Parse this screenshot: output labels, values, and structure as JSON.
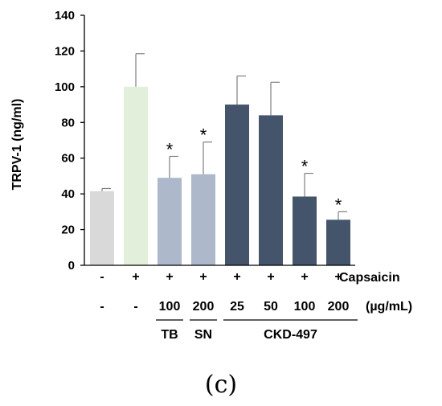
{
  "chart_data": {
    "type": "bar",
    "ylabel": "TRPV-1 (ng/ml)",
    "ylim": [
      0,
      140
    ],
    "yticks": [
      0,
      20,
      40,
      60,
      80,
      100,
      120,
      140
    ],
    "grid": false,
    "bars": [
      {
        "value": 41.5,
        "error": 1.5,
        "color": "#d9d9d9",
        "capsaicin": "-",
        "dose": "-",
        "significant": false
      },
      {
        "value": 100,
        "error": 18.5,
        "color": "#e2efda",
        "capsaicin": "+",
        "dose": "-",
        "significant": false
      },
      {
        "value": 49,
        "error": 12,
        "color": "#adb9ca",
        "capsaicin": "+",
        "dose": "100",
        "significant": true
      },
      {
        "value": 51,
        "error": 18,
        "color": "#adb9ca",
        "capsaicin": "+",
        "dose": "200",
        "significant": true
      },
      {
        "value": 90,
        "error": 16,
        "color": "#44546a",
        "capsaicin": "+",
        "dose": "25",
        "significant": false
      },
      {
        "value": 84,
        "error": 18.5,
        "color": "#44546a",
        "capsaicin": "+",
        "dose": "50",
        "significant": false
      },
      {
        "value": 38.5,
        "error": 13,
        "color": "#44546a",
        "capsaicin": "+",
        "dose": "100",
        "significant": true
      },
      {
        "value": 25.5,
        "error": 4.5,
        "color": "#44546a",
        "capsaicin": "+",
        "dose": "200",
        "significant": true
      }
    ],
    "significance_marker": "*",
    "row_labels": {
      "capsaicin": "Capsaicin",
      "dose": "(µg/mL)"
    },
    "groups": [
      {
        "label": "TB",
        "from": 2,
        "to": 2
      },
      {
        "label": "SN",
        "from": 3,
        "to": 3
      },
      {
        "label": "CKD-497",
        "from": 4,
        "to": 7
      }
    ]
  },
  "caption": "(c)"
}
